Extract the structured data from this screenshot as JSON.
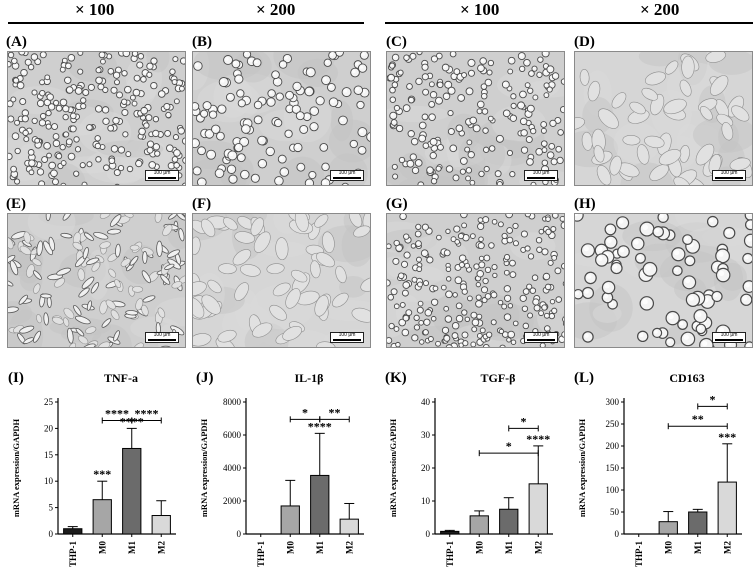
{
  "header": {
    "mag_a": "× 100",
    "mag_b": "× 200",
    "mag_c": "× 100",
    "mag_d": "× 200"
  },
  "panels": {
    "A": "(A)",
    "B": "(B)",
    "C": "(C)",
    "D": "(D)",
    "E": "(E)",
    "F": "(F)",
    "G": "(G)",
    "H": "(H)"
  },
  "scale_bar": "100 μm",
  "charts": {
    "I": {
      "panel": "(I)",
      "title": "TNF-a"
    },
    "J": {
      "panel": "(J)",
      "title": "IL-1β"
    },
    "K": {
      "panel": "(K)",
      "title": "TGF-β"
    },
    "L": {
      "panel": "(L)",
      "title": "CD163"
    }
  },
  "chart_data": [
    {
      "type": "bar",
      "panel": "(I)",
      "title": "TNF-a",
      "ylabel": "mRNA expression/GAPDH",
      "xlabel": "",
      "categories": [
        "THP-1",
        "M0",
        "M1",
        "M2"
      ],
      "values": [
        1,
        6.5,
        16.2,
        3.5
      ],
      "errors": [
        0.4,
        3.5,
        3.8,
        2.8
      ],
      "ylim": [
        0,
        25
      ],
      "yticks": [
        0,
        5,
        10,
        15,
        20,
        25
      ],
      "bar_colors": [
        "#1c1c1c",
        "#a6a6a6",
        "#6b6b6b",
        "#d9d9d9"
      ],
      "bar_stars": [
        "",
        "***",
        "****",
        ""
      ],
      "brackets": [
        {
          "from": 1,
          "to": 2,
          "label": "****",
          "y": 21.5
        },
        {
          "from": 2,
          "to": 3,
          "label": "****",
          "y": 21.5
        }
      ]
    },
    {
      "type": "bar",
      "panel": "(J)",
      "title": "IL-1β",
      "ylabel": "mRNA expression/GAPDH",
      "xlabel": "",
      "categories": [
        "THP-1",
        "M0",
        "M1",
        "M2"
      ],
      "values": [
        0,
        1700,
        3550,
        900
      ],
      "errors": [
        0,
        1550,
        2550,
        950
      ],
      "ylim": [
        0,
        8000
      ],
      "yticks": [
        0,
        2000,
        4000,
        6000,
        8000
      ],
      "bar_colors": [
        "#1c1c1c",
        "#a6a6a6",
        "#6b6b6b",
        "#d9d9d9"
      ],
      "bar_stars": [
        "",
        "",
        "****",
        ""
      ],
      "brackets": [
        {
          "from": 1,
          "to": 2,
          "label": "*",
          "y": 6950
        },
        {
          "from": 2,
          "to": 3,
          "label": "**",
          "y": 6950
        }
      ]
    },
    {
      "type": "bar",
      "panel": "(K)",
      "title": "TGF-β",
      "ylabel": "mRNA expression/GAPDH",
      "xlabel": "",
      "categories": [
        "THP-1",
        "M0",
        "M1",
        "M2"
      ],
      "values": [
        0.8,
        5.5,
        7.5,
        15.2
      ],
      "errors": [
        0.3,
        1.5,
        3.5,
        11.5
      ],
      "ylim": [
        0,
        40
      ],
      "yticks": [
        0,
        10,
        20,
        30,
        40
      ],
      "bar_colors": [
        "#1c1c1c",
        "#a6a6a6",
        "#6b6b6b",
        "#d9d9d9"
      ],
      "bar_stars": [
        "",
        "",
        "",
        "****"
      ],
      "brackets": [
        {
          "from": 1,
          "to": 3,
          "label": "*",
          "y": 24.5
        },
        {
          "from": 2,
          "to": 3,
          "label": "*",
          "y": 32
        }
      ]
    },
    {
      "type": "bar",
      "panel": "(L)",
      "title": "CD163",
      "ylabel": "mRNA expression/GAPDH",
      "xlabel": "",
      "categories": [
        "THP-1",
        "M0",
        "M1",
        "M2"
      ],
      "values": [
        0,
        28,
        50,
        118
      ],
      "errors": [
        0,
        23,
        6,
        87
      ],
      "ylim": [
        0,
        300
      ],
      "yticks": [
        0,
        50,
        100,
        150,
        200,
        250,
        300
      ],
      "bar_colors": [
        "#1c1c1c",
        "#a6a6a6",
        "#6b6b6b",
        "#d9d9d9"
      ],
      "bar_stars": [
        "",
        "",
        "",
        "***"
      ],
      "brackets": [
        {
          "from": 1,
          "to": 3,
          "label": "**",
          "y": 245
        },
        {
          "from": 2,
          "to": 3,
          "label": "*",
          "y": 290
        }
      ]
    }
  ]
}
